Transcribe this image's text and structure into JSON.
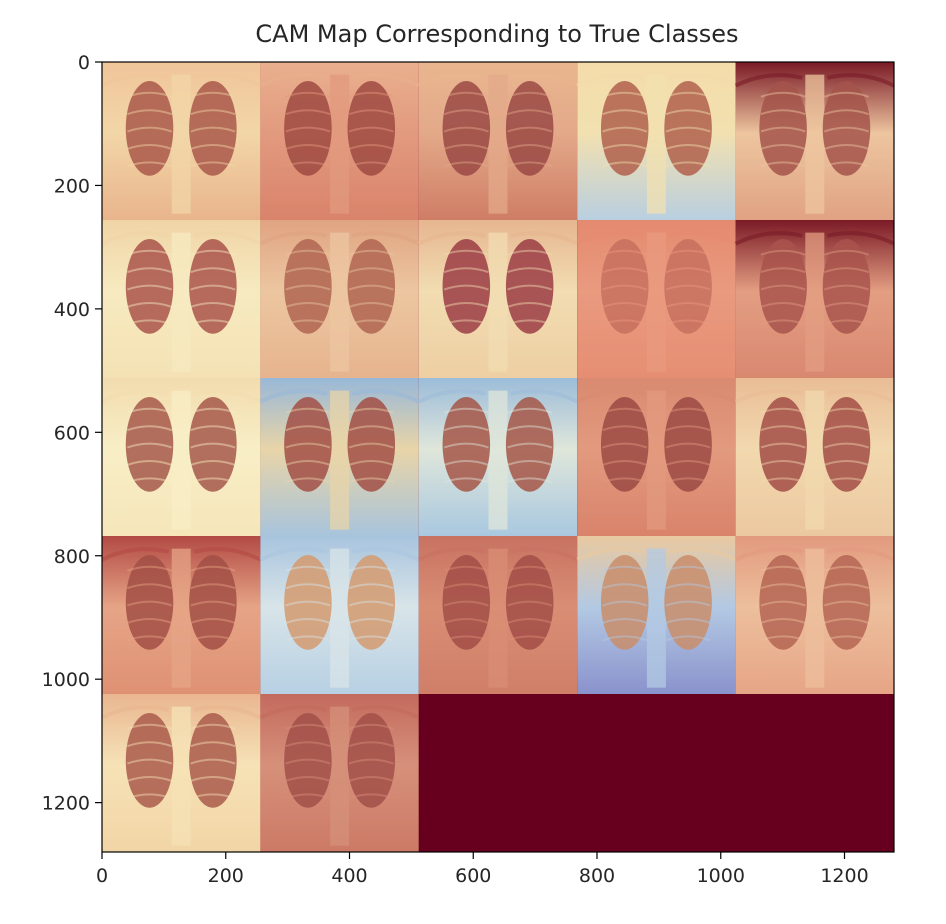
{
  "chart_data": {
    "type": "heatmap",
    "title": "CAM Map Corresponding to True Classes",
    "xlabel": "",
    "ylabel": "",
    "xlim": [
      0,
      1280
    ],
    "ylim": [
      1280,
      0
    ],
    "x_ticks": [
      0,
      200,
      400,
      600,
      800,
      1000,
      1200
    ],
    "y_ticks": [
      0,
      200,
      400,
      600,
      800,
      1000,
      1200
    ],
    "grid": false,
    "colormap": "RdYlBu_r overlay on chest X-ray images",
    "tile_size": 256,
    "grid_rows": 5,
    "grid_cols": 5,
    "tiles": [
      {
        "row": 0,
        "col": 0,
        "base": "#e9b48c",
        "mid": "#f2d6a7",
        "lung": "#a9584a",
        "edge": "#f0c59a"
      },
      {
        "row": 0,
        "col": 1,
        "base": "#d9836b",
        "mid": "#e29a7e",
        "lung": "#9f4a42",
        "edge": "#e9b08e"
      },
      {
        "row": 0,
        "col": 2,
        "base": "#cf7d65",
        "mid": "#e3a989",
        "lung": "#9a4944",
        "edge": "#e9b68f"
      },
      {
        "row": 0,
        "col": 3,
        "base": "#b9cfe0",
        "mid": "#f2e0b0",
        "lung": "#b0604c",
        "edge": "#f4dcaa"
      },
      {
        "row": 0,
        "col": 4,
        "base": "#e0a282",
        "mid": "#edc59f",
        "lung": "#a3544a",
        "edge": "#7a1a26"
      },
      {
        "row": 1,
        "col": 0,
        "base": "#f4e2b4",
        "mid": "#f7eac0",
        "lung": "#a9544a",
        "edge": "#f0d4a6"
      },
      {
        "row": 1,
        "col": 1,
        "base": "#e6b48e",
        "mid": "#ecc6a0",
        "lung": "#b06551",
        "edge": "#e0a482"
      },
      {
        "row": 1,
        "col": 2,
        "base": "#edcfa3",
        "mid": "#f2dcb1",
        "lung": "#9b3c44",
        "edge": "#e6b690"
      },
      {
        "row": 1,
        "col": 3,
        "base": "#e68e74",
        "mid": "#e99a7f",
        "lung": "#c7705f",
        "edge": "#e48a70"
      },
      {
        "row": 1,
        "col": 4,
        "base": "#d98870",
        "mid": "#e39e82",
        "lung": "#a8544c",
        "edge": "#7a1a26"
      },
      {
        "row": 2,
        "col": 0,
        "base": "#f6e6ba",
        "mid": "#f8eec6",
        "lung": "#a6584a",
        "edge": "#f2dcae"
      },
      {
        "row": 2,
        "col": 1,
        "base": "#a8c4dc",
        "mid": "#e8d4a8",
        "lung": "#a24f45",
        "edge": "#98b8d8"
      },
      {
        "row": 2,
        "col": 2,
        "base": "#a9c8e0",
        "mid": "#dfe6da",
        "lung": "#a45647",
        "edge": "#9cbcd9"
      },
      {
        "row": 2,
        "col": 3,
        "base": "#d9836b",
        "mid": "#e29a7e",
        "lung": "#9c4a44",
        "edge": "#d98a70"
      },
      {
        "row": 2,
        "col": 4,
        "base": "#ecc8a0",
        "mid": "#f2d8ae",
        "lung": "#a24e45",
        "edge": "#e9bd96"
      },
      {
        "row": 3,
        "col": 0,
        "base": "#df9174",
        "mid": "#e6a486",
        "lung": "#a24f45",
        "edge": "#b24a44"
      },
      {
        "row": 3,
        "col": 1,
        "base": "#b7d0e4",
        "mid": "#d8e4e8",
        "lung": "#d49a6e",
        "edge": "#a8c4de"
      },
      {
        "row": 3,
        "col": 2,
        "base": "#d07e68",
        "mid": "#d98e74",
        "lung": "#a24e48",
        "edge": "#c87262"
      },
      {
        "row": 3,
        "col": 3,
        "base": "#8a92cc",
        "mid": "#b3c9e3",
        "lung": "#c98d6a",
        "edge": "#e9c9a0"
      },
      {
        "row": 3,
        "col": 4,
        "base": "#e6a586",
        "mid": "#edbf9c",
        "lung": "#b46553",
        "edge": "#e29a7e"
      },
      {
        "row": 4,
        "col": 0,
        "base": "#f2d5a6",
        "mid": "#f6e2b6",
        "lung": "#a95a4b",
        "edge": "#e9b690"
      },
      {
        "row": 4,
        "col": 1,
        "base": "#cc7a66",
        "mid": "#d6907a",
        "lung": "#a25049",
        "edge": "#c36a5e"
      }
    ],
    "empty_fill": "#67001f"
  }
}
